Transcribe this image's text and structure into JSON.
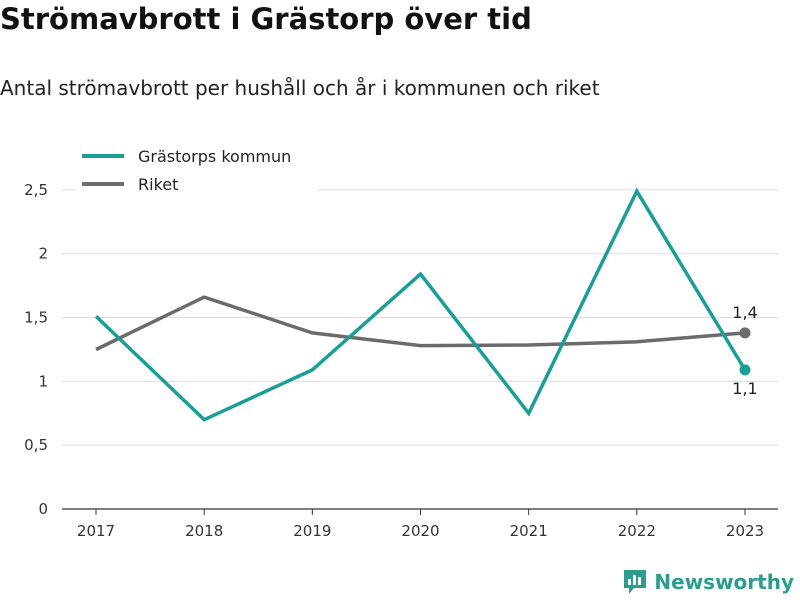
{
  "title": "Strömavbrott i Grästorp över tid",
  "subtitle": "Antal strömavbrott per hushåll och år i kommunen och riket",
  "brand": "Newsworthy",
  "colors": {
    "kommun": "#1a9e96",
    "riket": "#6b6b6b",
    "grid": "#dddddd",
    "axis": "#333333",
    "brand": "#2a9d8f"
  },
  "chart_data": {
    "type": "line",
    "x": [
      "2017",
      "2018",
      "2019",
      "2020",
      "2021",
      "2022",
      "2023"
    ],
    "series": [
      {
        "name": "Grästorps kommun",
        "values": [
          1.51,
          0.7,
          1.09,
          1.84,
          0.75,
          2.49,
          1.09
        ]
      },
      {
        "name": "Riket",
        "values": [
          1.25,
          1.66,
          1.38,
          1.28,
          1.285,
          1.31,
          1.38
        ]
      }
    ],
    "ylim": [
      0,
      2.75
    ],
    "yticks": [
      0,
      0.5,
      1,
      1.5,
      2,
      2.5
    ],
    "ytick_labels": [
      "0",
      "0,5",
      "1",
      "1,5",
      "2",
      "2,5"
    ],
    "end_labels": {
      "Grästorps kommun": "1,1",
      "Riket": "1,4"
    },
    "grid": true,
    "legend": "top-left"
  }
}
